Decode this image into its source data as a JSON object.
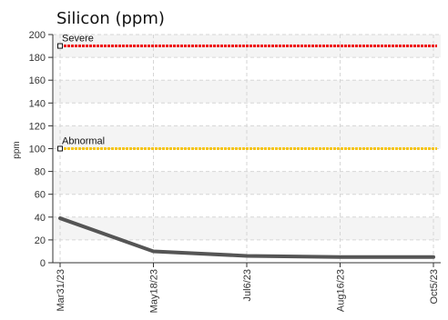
{
  "chart_data": {
    "type": "line",
    "title": "Silicon (ppm)",
    "ylabel": "ppm",
    "xlabel": "",
    "ylim": [
      0,
      200
    ],
    "yticks": [
      0,
      20,
      40,
      60,
      80,
      100,
      120,
      140,
      160,
      180,
      200
    ],
    "x": [
      "Mar31/23",
      "May18/23",
      "Jul6/23",
      "Aug16/23",
      "Oct5/23"
    ],
    "series": [
      {
        "values": [
          39,
          10,
          6,
          5,
          5
        ],
        "color": "#555555"
      }
    ],
    "thresholds": [
      {
        "label": "Severe",
        "value": 190,
        "color": "#ee1111"
      },
      {
        "label": "Abnormal",
        "value": 100,
        "color": "#f5c518"
      }
    ],
    "grid": true
  }
}
